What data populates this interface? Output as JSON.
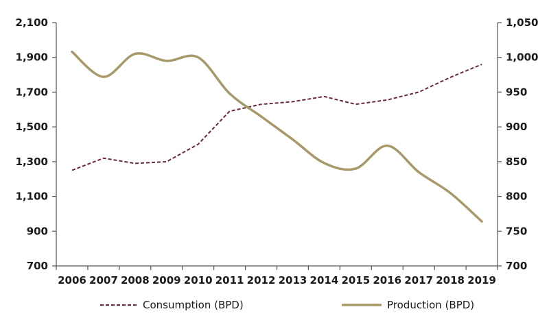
{
  "chart_data": {
    "type": "line",
    "title": "",
    "xlabel": "",
    "ylabel_left": "",
    "ylabel_right": "",
    "categories": [
      "2006",
      "2007",
      "2008",
      "2009",
      "2010",
      "2011",
      "2012",
      "2013",
      "2014",
      "2015",
      "2016",
      "2017",
      "2018",
      "2019"
    ],
    "left_axis": {
      "ylim": [
        700,
        2100
      ],
      "ticks": [
        700,
        900,
        1100,
        1300,
        1500,
        1700,
        1900,
        2100
      ],
      "tick_labels": [
        "700",
        "900",
        "1,100",
        "1,300",
        "1,500",
        "1,700",
        "1,900",
        "2,100"
      ]
    },
    "right_axis": {
      "ylim": [
        700,
        1050
      ],
      "ticks": [
        700,
        750,
        800,
        850,
        900,
        950,
        1000,
        1050
      ],
      "tick_labels": [
        "700",
        "750",
        "800",
        "850",
        "900",
        "950",
        "1,000",
        "1,050"
      ]
    },
    "series": [
      {
        "name": "Consumption (BPD)",
        "axis": "left",
        "style": "dashed",
        "color": "#6b2737",
        "values": [
          1250,
          1320,
          1290,
          1300,
          1400,
          1590,
          1630,
          1645,
          1675,
          1630,
          1655,
          1700,
          1785,
          1860
        ]
      },
      {
        "name": "Production (BPD)",
        "axis": "right",
        "style": "solid",
        "color": "#a8996a",
        "values": [
          1008,
          972,
          1005,
          995,
          1000,
          948,
          915,
          882,
          848,
          840,
          873,
          835,
          805,
          764
        ]
      }
    ],
    "legend_position": "bottom",
    "grid": false
  }
}
